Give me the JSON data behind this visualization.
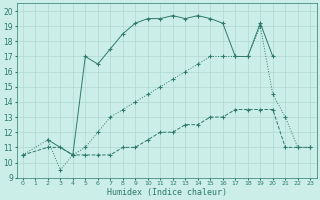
{
  "xlabel": "Humidex (Indice chaleur)",
  "bg_color": "#cceee8",
  "grid_color": "#b0d8d0",
  "line_color": "#2d7a6a",
  "xlim": [
    -0.5,
    23.5
  ],
  "ylim": [
    9,
    20.5
  ],
  "xticks": [
    0,
    1,
    2,
    3,
    4,
    5,
    6,
    7,
    8,
    9,
    10,
    11,
    12,
    13,
    14,
    15,
    16,
    17,
    18,
    19,
    20,
    21,
    22,
    23
  ],
  "yticks": [
    9,
    10,
    11,
    12,
    13,
    14,
    15,
    16,
    17,
    18,
    19,
    20
  ],
  "line1_x": [
    0,
    2,
    3,
    4,
    5,
    6,
    7,
    8,
    9,
    10,
    11,
    12,
    13,
    14,
    15,
    16,
    17,
    18,
    19,
    20,
    21,
    22,
    23
  ],
  "line1_y": [
    10.5,
    11,
    11,
    10.5,
    10.5,
    10.5,
    10.5,
    11,
    11,
    11.5,
    12,
    12,
    12.5,
    12.5,
    13,
    13,
    13.5,
    13.5,
    13.5,
    13.5,
    11,
    11,
    11
  ],
  "line2_x": [
    0,
    2,
    3,
    4,
    5,
    6,
    7,
    8,
    9,
    10,
    11,
    12,
    13,
    14,
    15,
    16,
    17,
    18,
    19,
    20,
    21,
    22,
    23
  ],
  "line2_y": [
    10.5,
    11.5,
    9.5,
    10.5,
    11,
    12,
    13,
    13.5,
    14,
    14.5,
    15,
    15.5,
    16,
    16.5,
    17,
    17,
    17,
    17,
    19,
    14.5,
    13,
    11,
    11
  ],
  "line3_x": [
    2,
    4,
    5,
    6,
    7,
    8,
    9,
    10,
    11,
    12,
    13,
    14,
    15,
    16,
    17,
    18,
    19,
    20
  ],
  "line3_y": [
    11.5,
    10.5,
    17,
    16.5,
    17.5,
    18.5,
    19.2,
    19.5,
    19.5,
    19.7,
    19.5,
    19.7,
    19.5,
    19.2,
    17,
    17,
    19.2,
    17
  ],
  "marker": "+"
}
